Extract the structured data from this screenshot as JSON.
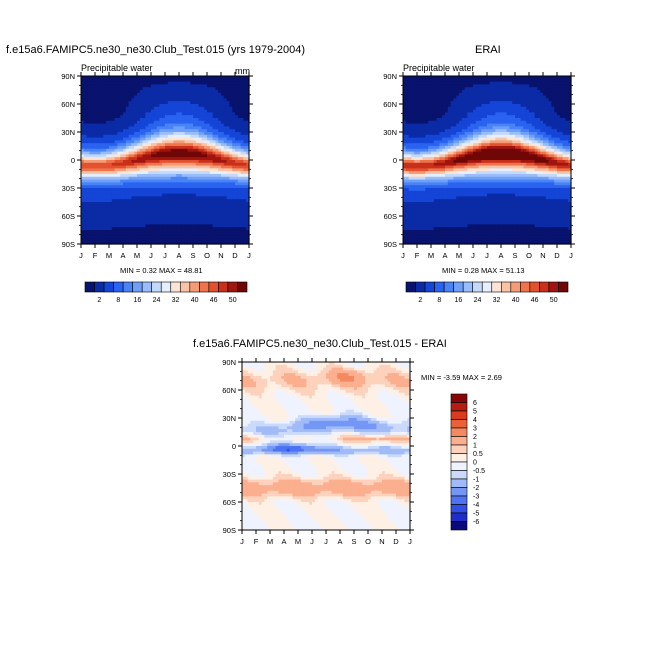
{
  "chart_data": [
    {
      "type": "heatmap",
      "title": "f.e15a6.FAMIPC5.ne30_ne30.Club_Test.015 (yrs 1979-2004)",
      "left_subtitle": "Precipitable water",
      "units": "mm",
      "x_ticks": [
        "J",
        "F",
        "M",
        "A",
        "M",
        "J",
        "J",
        "A",
        "S",
        "O",
        "N",
        "D",
        "J"
      ],
      "y_ticks": [
        "90N",
        "60N",
        "30N",
        "0",
        "30S",
        "60S",
        "90S"
      ],
      "y_values": [
        90,
        60,
        30,
        0,
        -30,
        -60,
        -90
      ],
      "min_label": "MIN =",
      "min": "0.32",
      "max_label": "MAX =",
      "max": "48.81",
      "field_max": 48.8,
      "colorbar_ticks": [
        "2",
        "8",
        "16",
        "24",
        "32",
        "40",
        "46",
        "50"
      ]
    },
    {
      "type": "heatmap",
      "title": "ERAI",
      "left_subtitle": "Precipitable water",
      "x_ticks": [
        "J",
        "F",
        "M",
        "A",
        "M",
        "J",
        "J",
        "A",
        "S",
        "O",
        "N",
        "D",
        "J"
      ],
      "y_ticks": [
        "90N",
        "60N",
        "30N",
        "0",
        "30S",
        "60S",
        "90S"
      ],
      "y_values": [
        90,
        60,
        30,
        0,
        -30,
        -60,
        -90
      ],
      "min_label": "MIN =",
      "min": "0.28",
      "max_label": "MAX =",
      "max": "51.13",
      "field_max": 51.1,
      "colorbar_ticks": [
        "2",
        "8",
        "16",
        "24",
        "32",
        "40",
        "46",
        "50"
      ]
    },
    {
      "type": "heatmap",
      "title": "f.e15a6.FAMIPC5.ne30_ne30.Club_Test.015 - ERAI",
      "x_ticks": [
        "J",
        "F",
        "M",
        "A",
        "M",
        "J",
        "J",
        "A",
        "S",
        "O",
        "N",
        "D",
        "J"
      ],
      "y_ticks": [
        "90N",
        "60N",
        "30N",
        "0",
        "30S",
        "60S",
        "90S"
      ],
      "y_values": [
        90,
        60,
        30,
        0,
        -30,
        -60,
        -90
      ],
      "min_label": "MIN =",
      "min": "-3.59",
      "max_label": "MAX =",
      "max": "2.69",
      "colorbar_ticks": [
        "6",
        "5",
        "4",
        "3",
        "2",
        "1",
        "0.5",
        "0",
        "-0.5",
        "-1",
        "-2",
        "-3",
        "-4",
        "-5",
        "-6"
      ]
    }
  ],
  "colors": {
    "abs_scale": [
      "#08136e",
      "#0b2aa6",
      "#1545d6",
      "#2a63f0",
      "#4a83f6",
      "#6fa0f9",
      "#98bdfa",
      "#c3d8fb",
      "#e6efff",
      "#fde4d4",
      "#f9c3a6",
      "#f59c77",
      "#ee744e",
      "#e2522f",
      "#c8301a",
      "#a11511",
      "#700707"
    ],
    "diff_scale": [
      "#0a0a78",
      "#1f2ec8",
      "#2f4fe6",
      "#4d72f2",
      "#7497f6",
      "#a0bbf8",
      "#cbdafb",
      "#eef3ff",
      "#fff0e6",
      "#fdd2bc",
      "#fbaf8f",
      "#f48960",
      "#ea6137",
      "#d83b1d",
      "#b51e10",
      "#850707"
    ]
  }
}
